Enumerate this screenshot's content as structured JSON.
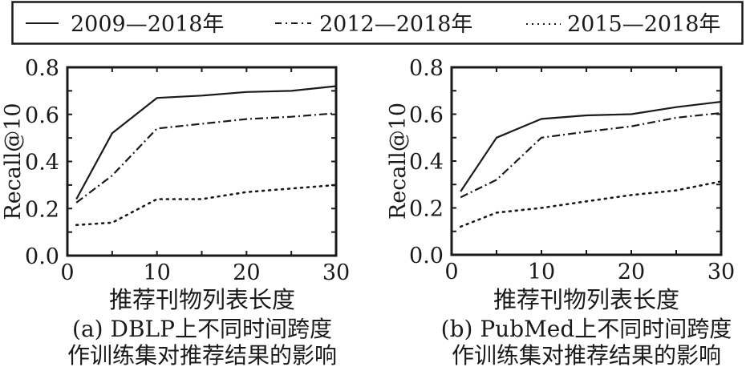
{
  "legend": {
    "items": [
      {
        "label": "2009—2018年",
        "style": "solid"
      },
      {
        "label": "2012—2018年",
        "style": "dashdot"
      },
      {
        "label": "2015—2018年",
        "style": "dotted"
      }
    ]
  },
  "chart_data": [
    {
      "type": "line",
      "panel": "a",
      "xlabel": "推荐刊物列表长度",
      "ylabel": "Recall@10",
      "xlim": [
        0,
        30
      ],
      "ylim": [
        0.0,
        0.8
      ],
      "xticks": [
        0,
        10,
        20,
        30
      ],
      "xtick_labels": [
        "0",
        "10",
        "20",
        "30"
      ],
      "yticks": [
        0.0,
        0.2,
        0.4,
        0.6,
        0.8
      ],
      "ytick_labels": [
        "0.0",
        "0.2",
        "0.4",
        "0.6",
        "0.8"
      ],
      "grid": false,
      "caption_line1": "(a) DBLP上不同时间跨度",
      "caption_line2": "作训练集对推荐结果的影响",
      "series": [
        {
          "name": "2009—2018年",
          "style": "solid",
          "x": [
            1,
            5,
            10,
            15,
            20,
            25,
            30
          ],
          "y": [
            0.24,
            0.52,
            0.67,
            0.68,
            0.695,
            0.7,
            0.72
          ]
        },
        {
          "name": "2012—2018年",
          "style": "dashdot",
          "x": [
            1,
            5,
            10,
            15,
            20,
            25,
            30
          ],
          "y": [
            0.225,
            0.34,
            0.54,
            0.56,
            0.58,
            0.59,
            0.605
          ]
        },
        {
          "name": "2015—2018年",
          "style": "dotted",
          "x": [
            1,
            5,
            10,
            15,
            20,
            25,
            30
          ],
          "y": [
            0.13,
            0.14,
            0.24,
            0.24,
            0.27,
            0.285,
            0.3
          ]
        }
      ]
    },
    {
      "type": "line",
      "panel": "b",
      "xlabel": "推荐刊物列表长度",
      "ylabel": "Recall@10",
      "xlim": [
        0,
        30
      ],
      "ylim": [
        0.0,
        0.8
      ],
      "xticks": [
        0,
        10,
        20,
        30
      ],
      "xtick_labels": [
        "0",
        "10",
        "20",
        "30"
      ],
      "yticks": [
        0.0,
        0.2,
        0.4,
        0.6,
        0.8
      ],
      "ytick_labels": [
        "0.0",
        "0.2",
        "0.4",
        "0.6",
        "0.8"
      ],
      "grid": false,
      "caption_line1": "(b) PubMed上不同时间跨度",
      "caption_line2": "作训练集对推荐结果的影响",
      "series": [
        {
          "name": "2009—2018年",
          "style": "solid",
          "x": [
            1,
            5,
            10,
            15,
            20,
            25,
            30
          ],
          "y": [
            0.27,
            0.5,
            0.58,
            0.595,
            0.6,
            0.63,
            0.653
          ]
        },
        {
          "name": "2012—2018年",
          "style": "dashdot",
          "x": [
            1,
            5,
            10,
            15,
            20,
            25,
            30
          ],
          "y": [
            0.245,
            0.32,
            0.5,
            0.525,
            0.548,
            0.585,
            0.605
          ]
        },
        {
          "name": "2015—2018年",
          "style": "dotted",
          "x": [
            1,
            5,
            10,
            15,
            20,
            25,
            30
          ],
          "y": [
            0.12,
            0.18,
            0.2,
            0.228,
            0.255,
            0.275,
            0.313
          ]
        }
      ]
    }
  ]
}
